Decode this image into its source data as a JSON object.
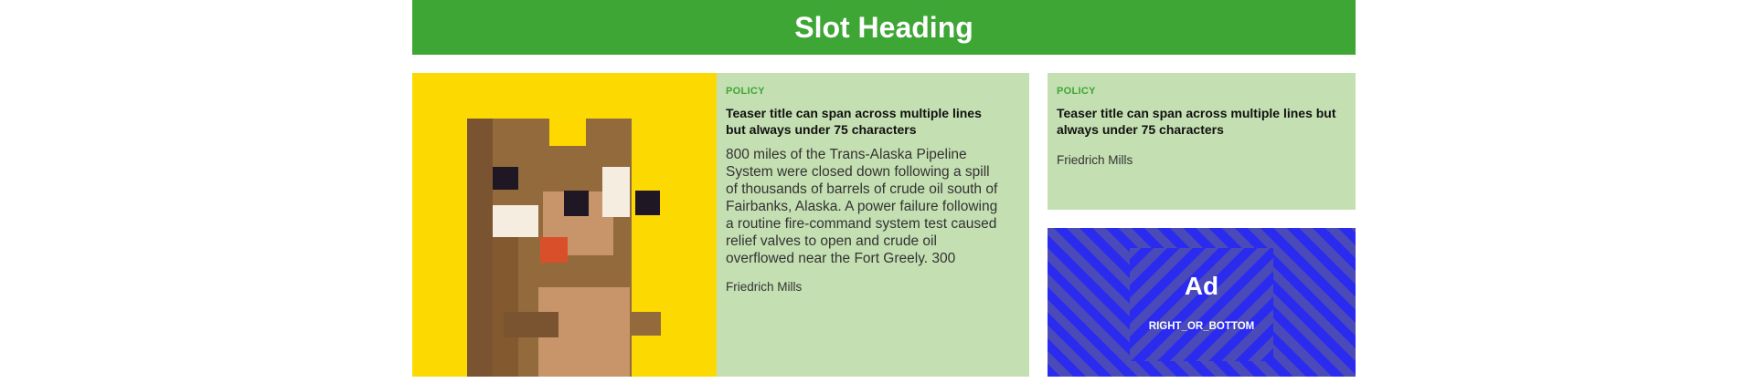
{
  "slot": {
    "heading": "Slot Heading"
  },
  "main_teaser": {
    "category": "POLICY",
    "title": "Teaser title can span across multiple lines but always under 75 characters",
    "text": "800 miles of the Trans-Alaska Pipeline System were closed down following a spill of thousands of barrels of crude oil south of Fairbanks, Alaska. A power failure following a routine fire-command system test caused relief valves to open and crude oil overflowed near the Fort Greely. 300",
    "author": "Friedrich Mills",
    "image_icon": "pixel-beaver-icon"
  },
  "side_teaser": {
    "category": "POLICY",
    "title": "Teaser title can span across multiple lines but always under 75 characters",
    "author": "Friedrich Mills"
  },
  "ad": {
    "title": "Ad",
    "slot": "RIGHT_OR_BOTTOM"
  },
  "colors": {
    "brand_green": "#3ea635",
    "teaser_bg": "#c4dfb2",
    "image_bg": "#fcda01",
    "ad_blue": "#2b2bef"
  }
}
